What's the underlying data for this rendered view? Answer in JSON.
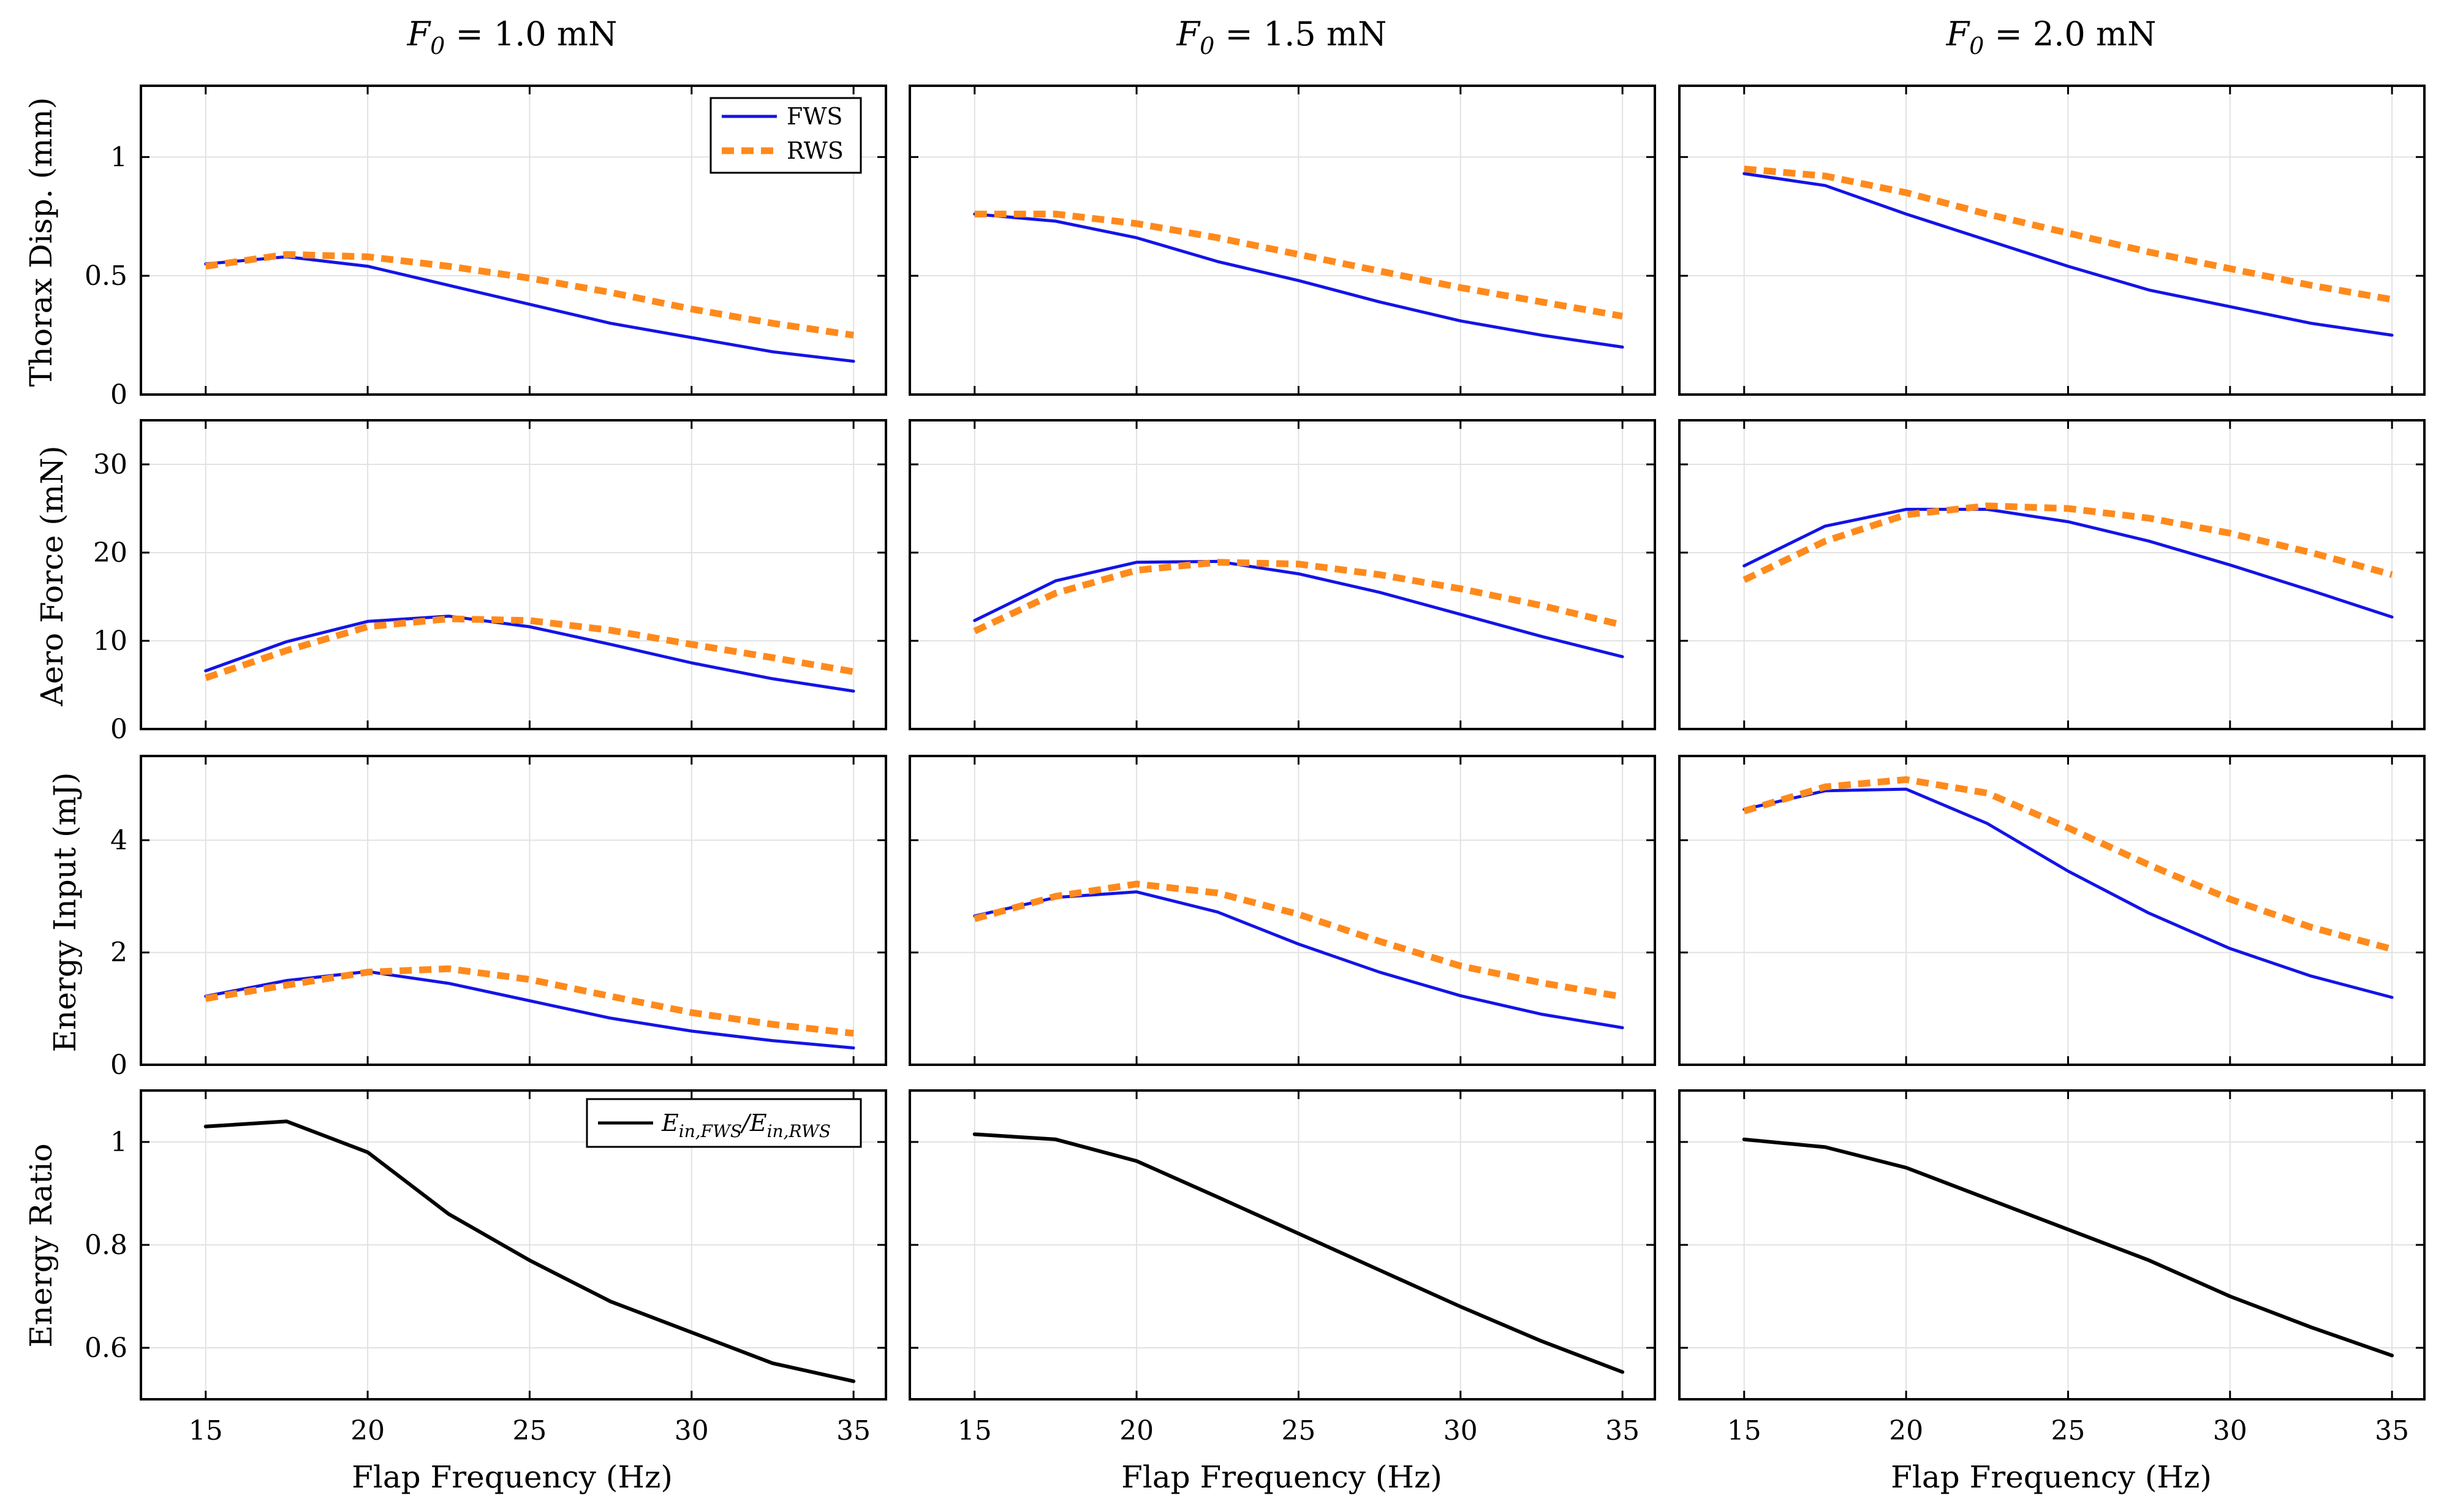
{
  "colors": {
    "fws": "#1414e6",
    "rws": "#ff8a1c",
    "ratio": "#000000",
    "grid": "#e2e2e2"
  },
  "columns": [
    {
      "prefix": "F",
      "sub": "0",
      "suffix": " = 1.0 mN"
    },
    {
      "prefix": "F",
      "sub": "0",
      "suffix": " = 1.5 mN"
    },
    {
      "prefix": "F",
      "sub": "0",
      "suffix": " = 2.0 mN"
    }
  ],
  "legend_top": {
    "fws": "FWS",
    "rws": "RWS"
  },
  "legend_bottom": {
    "pre": "E",
    "sub1": "in,FWS",
    "mid": "/E",
    "sub2": "in,RWS"
  },
  "chart_data": {
    "type": "line",
    "xlabel": "Flap Frequency (Hz)",
    "xlim": [
      13,
      36
    ],
    "xticks": [
      15,
      20,
      25,
      30,
      35
    ],
    "x": [
      15,
      17.5,
      20,
      22.5,
      25,
      27.5,
      30,
      32.5,
      35
    ],
    "rows": [
      {
        "ylabel": "Thorax Disp. (mm)",
        "ylim": [
          0,
          1.3
        ],
        "yticks": [
          0,
          0.5,
          1
        ],
        "panels": [
          {
            "series": [
              {
                "name": "FWS",
                "values": [
                  0.55,
                  0.58,
                  0.54,
                  0.46,
                  0.38,
                  0.3,
                  0.24,
                  0.18,
                  0.14
                ]
              },
              {
                "name": "RWS",
                "values": [
                  0.54,
                  0.59,
                  0.58,
                  0.54,
                  0.49,
                  0.43,
                  0.36,
                  0.3,
                  0.25
                ]
              }
            ]
          },
          {
            "series": [
              {
                "name": "FWS",
                "values": [
                  0.76,
                  0.73,
                  0.66,
                  0.56,
                  0.48,
                  0.39,
                  0.31,
                  0.25,
                  0.2
                ]
              },
              {
                "name": "RWS",
                "values": [
                  0.76,
                  0.76,
                  0.72,
                  0.66,
                  0.59,
                  0.52,
                  0.45,
                  0.39,
                  0.33
                ]
              }
            ]
          },
          {
            "series": [
              {
                "name": "FWS",
                "values": [
                  0.93,
                  0.88,
                  0.76,
                  0.65,
                  0.54,
                  0.44,
                  0.37,
                  0.3,
                  0.25
                ]
              },
              {
                "name": "RWS",
                "values": [
                  0.95,
                  0.92,
                  0.85,
                  0.76,
                  0.68,
                  0.6,
                  0.53,
                  0.46,
                  0.4
                ]
              }
            ]
          }
        ]
      },
      {
        "ylabel": "Aero Force (mN)",
        "ylim": [
          0,
          35
        ],
        "yticks": [
          0,
          10,
          20,
          30
        ],
        "panels": [
          {
            "series": [
              {
                "name": "FWS",
                "values": [
                  6.6,
                  9.9,
                  12.2,
                  12.8,
                  11.6,
                  9.6,
                  7.5,
                  5.7,
                  4.3
                ]
              },
              {
                "name": "RWS",
                "values": [
                  5.8,
                  8.9,
                  11.6,
                  12.5,
                  12.3,
                  11.2,
                  9.6,
                  8.1,
                  6.5
                ]
              }
            ]
          },
          {
            "series": [
              {
                "name": "FWS",
                "values": [
                  12.3,
                  16.8,
                  18.9,
                  19.0,
                  17.6,
                  15.5,
                  13.0,
                  10.5,
                  8.2
                ]
              },
              {
                "name": "RWS",
                "values": [
                  11.1,
                  15.4,
                  18.0,
                  18.9,
                  18.7,
                  17.5,
                  15.9,
                  14.0,
                  11.8
                ]
              }
            ]
          },
          {
            "series": [
              {
                "name": "FWS",
                "values": [
                  18.5,
                  23.0,
                  24.9,
                  24.9,
                  23.5,
                  21.3,
                  18.6,
                  15.7,
                  12.7
                ]
              },
              {
                "name": "RWS",
                "values": [
                  16.9,
                  21.3,
                  24.3,
                  25.3,
                  25.0,
                  23.9,
                  22.2,
                  20.0,
                  17.5
                ]
              }
            ]
          }
        ]
      },
      {
        "ylabel": "Energy Input (mJ)",
        "ylim": [
          0,
          5.5
        ],
        "yticks": [
          0,
          2,
          4
        ],
        "panels": [
          {
            "series": [
              {
                "name": "FWS",
                "values": [
                  1.22,
                  1.5,
                  1.66,
                  1.45,
                  1.14,
                  0.83,
                  0.6,
                  0.43,
                  0.3
                ]
              },
              {
                "name": "RWS",
                "values": [
                  1.18,
                  1.42,
                  1.65,
                  1.71,
                  1.52,
                  1.22,
                  0.93,
                  0.72,
                  0.56
                ]
              }
            ]
          },
          {
            "series": [
              {
                "name": "FWS",
                "values": [
                  2.65,
                  2.98,
                  3.08,
                  2.72,
                  2.15,
                  1.65,
                  1.23,
                  0.9,
                  0.66
                ]
              },
              {
                "name": "RWS",
                "values": [
                  2.6,
                  3.0,
                  3.22,
                  3.06,
                  2.68,
                  2.2,
                  1.76,
                  1.46,
                  1.21
                ]
              }
            ]
          },
          {
            "series": [
              {
                "name": "FWS",
                "values": [
                  4.55,
                  4.88,
                  4.91,
                  4.3,
                  3.45,
                  2.7,
                  2.07,
                  1.58,
                  1.2
                ]
              },
              {
                "name": "RWS",
                "values": [
                  4.52,
                  4.95,
                  5.08,
                  4.84,
                  4.22,
                  3.56,
                  2.95,
                  2.45,
                  2.06
                ]
              }
            ]
          }
        ]
      },
      {
        "ylabel": "Energy Ratio",
        "ylim": [
          0.5,
          1.1
        ],
        "yticks": [
          0.6,
          0.8,
          1
        ],
        "panels": [
          {
            "series": [
              {
                "name": "Ein,FWS/Ein,RWS",
                "values": [
                  1.03,
                  1.04,
                  0.98,
                  0.86,
                  0.77,
                  0.69,
                  0.63,
                  0.57,
                  0.535
                ]
              }
            ]
          },
          {
            "series": [
              {
                "name": "Ein,FWS/Ein,RWS",
                "values": [
                  1.015,
                  1.005,
                  0.963,
                  0.893,
                  0.822,
                  0.751,
                  0.68,
                  0.613,
                  0.553
                ]
              }
            ]
          },
          {
            "series": [
              {
                "name": "Ein,FWS/Ein,RWS",
                "values": [
                  1.005,
                  0.99,
                  0.95,
                  0.89,
                  0.83,
                  0.77,
                  0.7,
                  0.64,
                  0.585
                ]
              }
            ]
          }
        ]
      }
    ]
  }
}
